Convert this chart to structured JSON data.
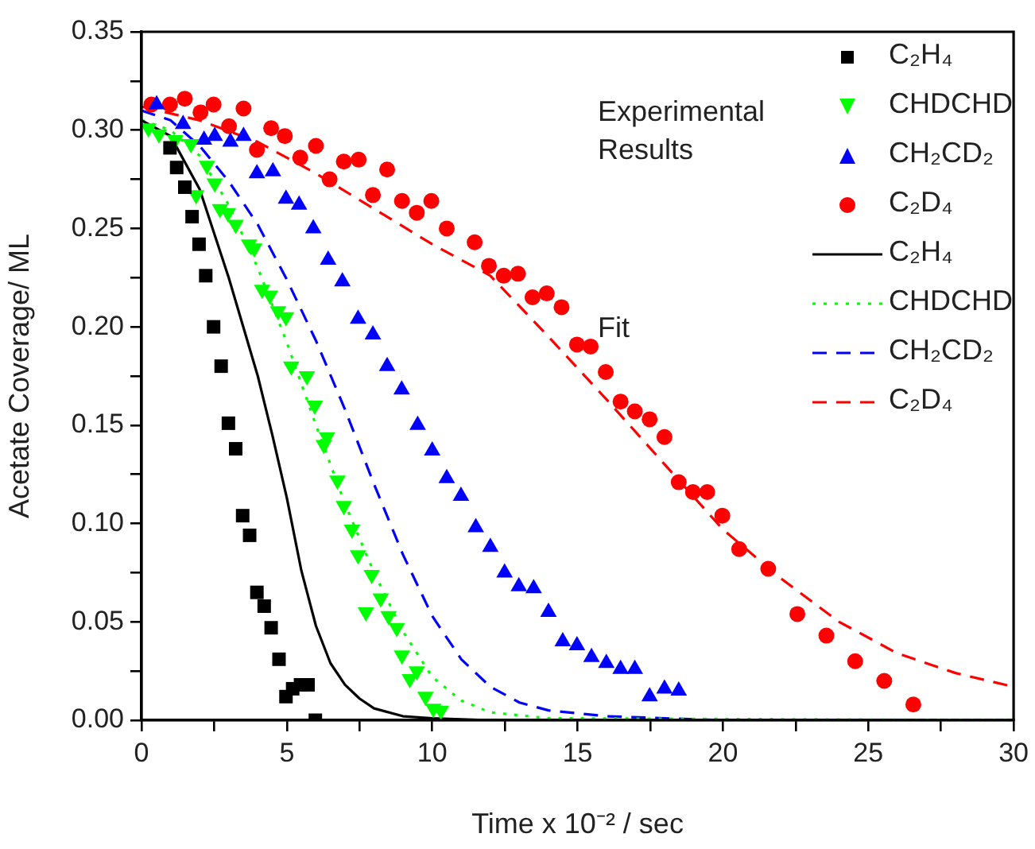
{
  "chart_data": {
    "type": "scatter",
    "xlabel": "Time x 10⁻² / sec",
    "ylabel": "Acetate Coverage/ ML",
    "xlim": [
      0,
      30
    ],
    "ylim": [
      0,
      0.35
    ],
    "xticks": [
      0,
      {
        "value": 2.5,
        "label": null
      },
      5,
      {
        "value": 7.5,
        "label": null
      },
      10,
      {
        "value": 12.5,
        "label": null
      },
      15,
      {
        "value": 17.5,
        "label": null
      },
      20,
      {
        "value": 22.5,
        "label": null
      },
      25,
      {
        "value": 27.5,
        "label": null
      },
      30
    ],
    "yticks": [
      {
        "value": 0,
        "label": "0.00"
      },
      {
        "value": 0.025,
        "label": null
      },
      {
        "value": 0.05,
        "label": "0.05"
      },
      {
        "value": 0.075,
        "label": null
      },
      {
        "value": 0.1,
        "label": "0.10"
      },
      {
        "value": 0.125,
        "label": null
      },
      {
        "value": 0.15,
        "label": "0.15"
      },
      {
        "value": 0.175,
        "label": null
      },
      {
        "value": 0.2,
        "label": "0.20"
      },
      {
        "value": 0.225,
        "label": null
      },
      {
        "value": 0.25,
        "label": "0.25"
      },
      {
        "value": 0.275,
        "label": null
      },
      {
        "value": 0.3,
        "label": "0.30"
      },
      {
        "value": 0.325,
        "label": null
      },
      {
        "value": 0.35,
        "label": "0.35"
      }
    ],
    "grid": false,
    "legend": "top right",
    "annotations": [
      "Experimental Results",
      "Fit"
    ],
    "series": [
      {
        "name": "C₂H₄",
        "color": "#000000",
        "marker": "square",
        "x": [
          0.98,
          1.21,
          1.49,
          1.74,
          1.98,
          2.21,
          2.48,
          2.74,
          2.99,
          3.24,
          3.48,
          3.72,
          3.97,
          4.22,
          4.46,
          4.73,
          4.97,
          5.2,
          5.47,
          5.73,
          5.98
        ],
        "values": [
          0.291,
          0.281,
          0.271,
          0.256,
          0.242,
          0.226,
          0.2,
          0.18,
          0.151,
          0.138,
          0.104,
          0.094,
          0.065,
          0.058,
          0.047,
          0.031,
          0.012,
          0.016,
          0.018,
          0.018,
          0.0
        ]
      },
      {
        "name": "CHDCHD",
        "color": "#00ff00",
        "marker": "triangle-down",
        "x": [
          0.24,
          0.6,
          1.16,
          1.7,
          1.88,
          2.25,
          2.52,
          2.7,
          2.97,
          3.24,
          3.7,
          3.88,
          4.15,
          4.42,
          4.7,
          4.97,
          5.15,
          5.69,
          5.96,
          6.27,
          6.38,
          6.74,
          6.96,
          7.24,
          7.45,
          7.72,
          7.92,
          8.23,
          8.5,
          8.78,
          8.96,
          9.23,
          9.47,
          9.77,
          10.04,
          10.3
        ],
        "values": [
          0.301,
          0.298,
          0.295,
          0.293,
          0.267,
          0.282,
          0.273,
          0.26,
          0.258,
          0.252,
          0.242,
          0.24,
          0.219,
          0.216,
          0.208,
          0.205,
          0.18,
          0.175,
          0.16,
          0.14,
          0.144,
          0.122,
          0.109,
          0.097,
          0.084,
          0.055,
          0.074,
          0.062,
          0.053,
          0.047,
          0.033,
          0.021,
          0.025,
          0.012,
          0.006,
          0.005
        ]
      },
      {
        "name": "CH₂CD₂",
        "color": "#0000ff",
        "marker": "triangle",
        "x": [
          0.52,
          1.43,
          2.15,
          2.52,
          3.06,
          3.51,
          3.97,
          4.52,
          4.97,
          5.42,
          5.91,
          6.42,
          6.91,
          7.45,
          7.96,
          8.45,
          8.95,
          9.5,
          10.0,
          10.5,
          10.99,
          11.5,
          12.0,
          12.49,
          12.98,
          13.49,
          14.0,
          14.49,
          14.98,
          15.48,
          15.99,
          16.48,
          16.97,
          17.48,
          17.99,
          18.48
        ],
        "values": [
          0.313,
          0.303,
          0.295,
          0.297,
          0.294,
          0.297,
          0.278,
          0.279,
          0.265,
          0.262,
          0.25,
          0.234,
          0.223,
          0.204,
          0.196,
          0.18,
          0.168,
          0.15,
          0.137,
          0.123,
          0.114,
          0.098,
          0.088,
          0.075,
          0.068,
          0.067,
          0.055,
          0.04,
          0.038,
          0.032,
          0.029,
          0.026,
          0.026,
          0.012,
          0.016,
          0.015
        ]
      },
      {
        "name": "C₂D₄",
        "color": "#ff0000",
        "marker": "circle",
        "x": [
          0.34,
          0.98,
          1.49,
          2.03,
          2.48,
          3.01,
          3.51,
          3.97,
          4.46,
          4.93,
          5.46,
          6.0,
          6.47,
          6.96,
          7.47,
          7.96,
          8.45,
          8.96,
          9.47,
          9.97,
          10.5,
          11.46,
          11.95,
          12.46,
          12.95,
          13.45,
          13.94,
          14.45,
          14.98,
          15.45,
          15.97,
          16.48,
          16.97,
          17.48,
          17.99,
          18.48,
          18.97,
          19.46,
          19.98,
          20.56,
          21.56,
          22.56,
          23.56,
          24.55,
          25.55,
          26.55
        ],
        "values": [
          0.313,
          0.313,
          0.316,
          0.309,
          0.313,
          0.302,
          0.311,
          0.29,
          0.301,
          0.297,
          0.286,
          0.292,
          0.275,
          0.284,
          0.285,
          0.267,
          0.28,
          0.264,
          0.258,
          0.264,
          0.25,
          0.243,
          0.231,
          0.226,
          0.227,
          0.215,
          0.217,
          0.21,
          0.191,
          0.19,
          0.177,
          0.162,
          0.157,
          0.153,
          0.144,
          0.121,
          0.116,
          0.116,
          0.104,
          0.087,
          0.077,
          0.054,
          0.043,
          0.03,
          0.02,
          0.008
        ]
      },
      {
        "type": "line",
        "name": "C₂H₄",
        "color": "#000000",
        "marker": "none",
        "line_style": "solid",
        "x": [
          0,
          1,
          2,
          3,
          4,
          4.5,
          5,
          5.5,
          6,
          6.5,
          7,
          7.5,
          8,
          9,
          10,
          12,
          15,
          30
        ],
        "values": [
          0.305,
          0.297,
          0.27,
          0.225,
          0.175,
          0.145,
          0.113,
          0.076,
          0.048,
          0.029,
          0.018,
          0.011,
          0.006,
          0.002,
          0.001,
          0,
          0,
          0
        ]
      },
      {
        "type": "line",
        "name": "CHDCHD",
        "color": "#00ff00",
        "marker": "none",
        "line_style": "dotted",
        "x": [
          0,
          1,
          2,
          3,
          4,
          5,
          6,
          7,
          8,
          9,
          10,
          11,
          12,
          14,
          30
        ],
        "values": [
          0.305,
          0.3,
          0.287,
          0.262,
          0.23,
          0.192,
          0.15,
          0.11,
          0.075,
          0.045,
          0.022,
          0.01,
          0.004,
          0.001,
          0
        ]
      },
      {
        "type": "line",
        "name": "CH₂CD₂",
        "color": "#0000ff",
        "marker": "none",
        "line_style": "dashed",
        "x": [
          0,
          1,
          2,
          3,
          4,
          5,
          6,
          7,
          8,
          9,
          10,
          11,
          12,
          13,
          14,
          16,
          20,
          30
        ],
        "values": [
          0.31,
          0.305,
          0.292,
          0.274,
          0.252,
          0.224,
          0.193,
          0.158,
          0.12,
          0.084,
          0.053,
          0.031,
          0.017,
          0.009,
          0.005,
          0.002,
          0,
          0
        ]
      },
      {
        "type": "line",
        "name": "C₂D₄",
        "color": "#ff0000",
        "marker": "none",
        "line_style": "dashed",
        "x": [
          0,
          2,
          4,
          6,
          8,
          10,
          12,
          14,
          16,
          18,
          20,
          22,
          24,
          26,
          28,
          30
        ],
        "values": [
          0.312,
          0.305,
          0.294,
          0.278,
          0.26,
          0.242,
          0.226,
          0.195,
          0.163,
          0.13,
          0.097,
          0.072,
          0.05,
          0.034,
          0.024,
          0.017
        ]
      }
    ]
  }
}
